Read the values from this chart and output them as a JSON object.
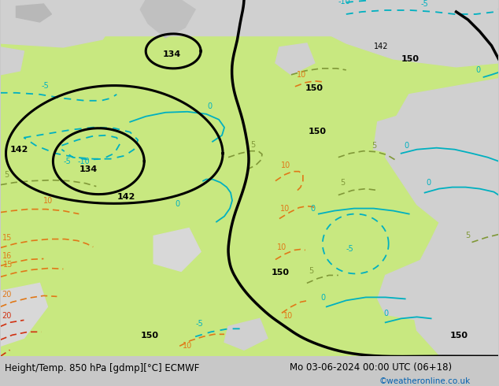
{
  "title_left": "Height/Temp. 850 hPa [gdmp][°C] ECMWF",
  "title_right": "Mo 03-06-2024 00:00 UTC (06+18)",
  "credit": "©weatheronline.co.uk",
  "fig_width": 6.34,
  "fig_height": 4.9,
  "dpi": 100,
  "green": "#c8e880",
  "light_green": "#d8f090",
  "gray_sea": "#c8c8c8",
  "gray_land": "#b8b8b8",
  "white_area": "#e8e8e8",
  "black": "#000000",
  "cyan": "#00b0c0",
  "orange": "#e07818",
  "red": "#d03010",
  "olive": "#809838",
  "bottom_white": "#ffffff",
  "credit_blue": "#0060b0"
}
